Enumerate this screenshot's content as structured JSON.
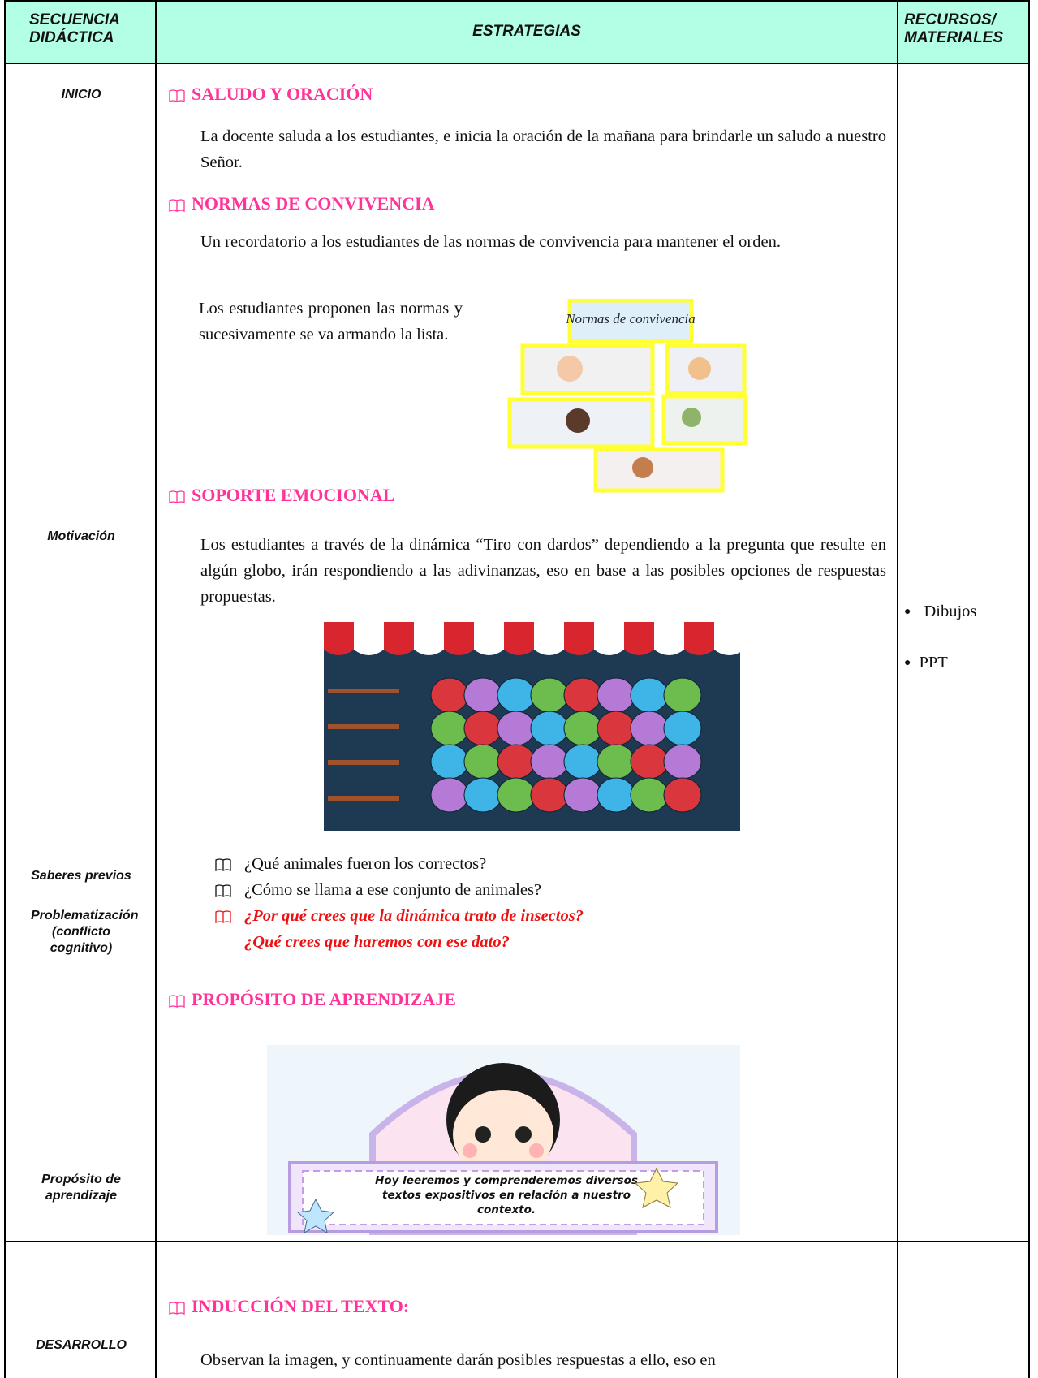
{
  "table": {
    "header": [
      "SECUENCIA DIDÁCTICA",
      "ESTRATEGIAS",
      "RECURSOS/ MATERIALES"
    ],
    "stages": [
      "INICIO",
      "Motivación",
      "Saberes previos",
      "Problematización (conflicto cognitivo)",
      "Propósito de aprendizaje",
      "DESARROLLO"
    ],
    "sections": [
      {
        "heading": "SALUDO Y ORACIÓN",
        "text": "La docente saluda a los estudiantes, e inicia la oración de la mañana para brindarle un saludo a nuestro Señor."
      },
      {
        "heading": "NORMAS DE CONVIVENCIA",
        "text": "Un recordatorio a los estudiantes de las normas de convivencia para mantener el orden.",
        "note": "Los estudiantes proponen las normas y sucesivamente se va armando la lista.",
        "image_title": "Normas de convivencia"
      },
      {
        "heading": "SOPORTE EMOCIONAL",
        "text": "Los estudiantes a través de la dinámica “Tiro con dardos” dependiendo a la pregunta que resulte en algún globo, irán respondiendo a las adivinanzas, eso en base a las posibles opciones de respuestas propuestas."
      },
      {
        "heading": "PROPÓSITO DE APRENDIZAJE",
        "image_text": "Hoy leeremos y comprenderemos diversos textos expositivos en relación a nuestro contexto."
      },
      {
        "heading": "INDUCCIÓN DEL TEXTO:",
        "text": "Observan la imagen, y continuamente darán posibles respuestas a ello, eso en"
      }
    ],
    "questions": [
      "¿Qué animales fueron los correctos?",
      "¿Cómo se llama a ese conjunto de animales?",
      "¿Por qué crees que la dinámica trato de insectos?",
      "¿Qué crees que haremos con ese dato?"
    ],
    "resources": [
      "Dibujos",
      "PPT"
    ]
  }
}
